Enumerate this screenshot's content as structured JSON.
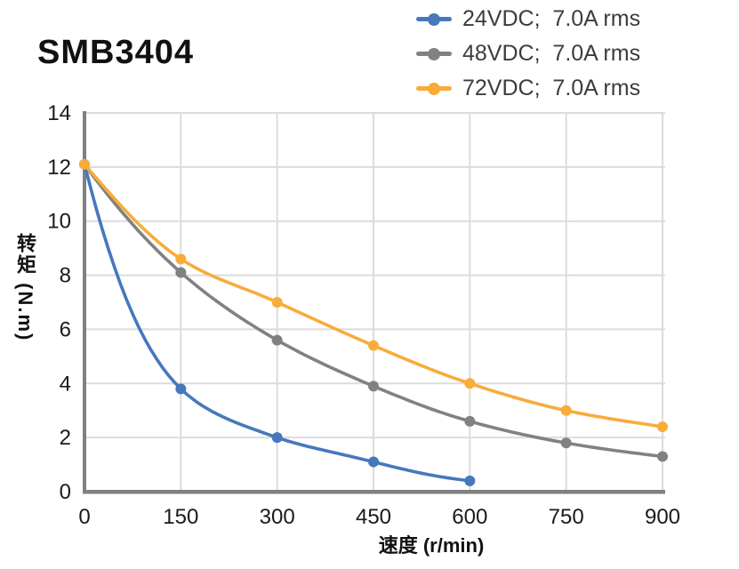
{
  "title": "SMB3404",
  "chart_data": {
    "type": "line",
    "x": [
      0,
      150,
      300,
      450,
      600,
      750,
      900
    ],
    "series": [
      {
        "name": "24VDC;  7.0A rms",
        "color": "#4678BC",
        "values": [
          12.1,
          3.8,
          2.0,
          1.1,
          0.4,
          null,
          null
        ]
      },
      {
        "name": "48VDC;  7.0A rms",
        "color": "#818181",
        "values": [
          12.1,
          8.1,
          5.6,
          3.9,
          2.6,
          1.8,
          1.3
        ]
      },
      {
        "name": "72VDC;  7.0A rms",
        "color": "#F8AC3A",
        "values": [
          12.1,
          8.6,
          7.0,
          5.4,
          4.0,
          3.0,
          2.4
        ]
      }
    ],
    "xlabel": "速度 (r/min)",
    "ylabel": "转矩 (N.m)",
    "xlim": [
      0,
      900
    ],
    "ylim": [
      0,
      14
    ],
    "xticks": [
      0,
      150,
      300,
      450,
      600,
      750,
      900
    ],
    "yticks": [
      0,
      2,
      4,
      6,
      8,
      10,
      12,
      14
    ],
    "grid": true,
    "legend_position": "top-right",
    "colors": {
      "grid": "#DCDCDC",
      "axis": "#808080",
      "tick_text": "#1A1A1A"
    }
  }
}
